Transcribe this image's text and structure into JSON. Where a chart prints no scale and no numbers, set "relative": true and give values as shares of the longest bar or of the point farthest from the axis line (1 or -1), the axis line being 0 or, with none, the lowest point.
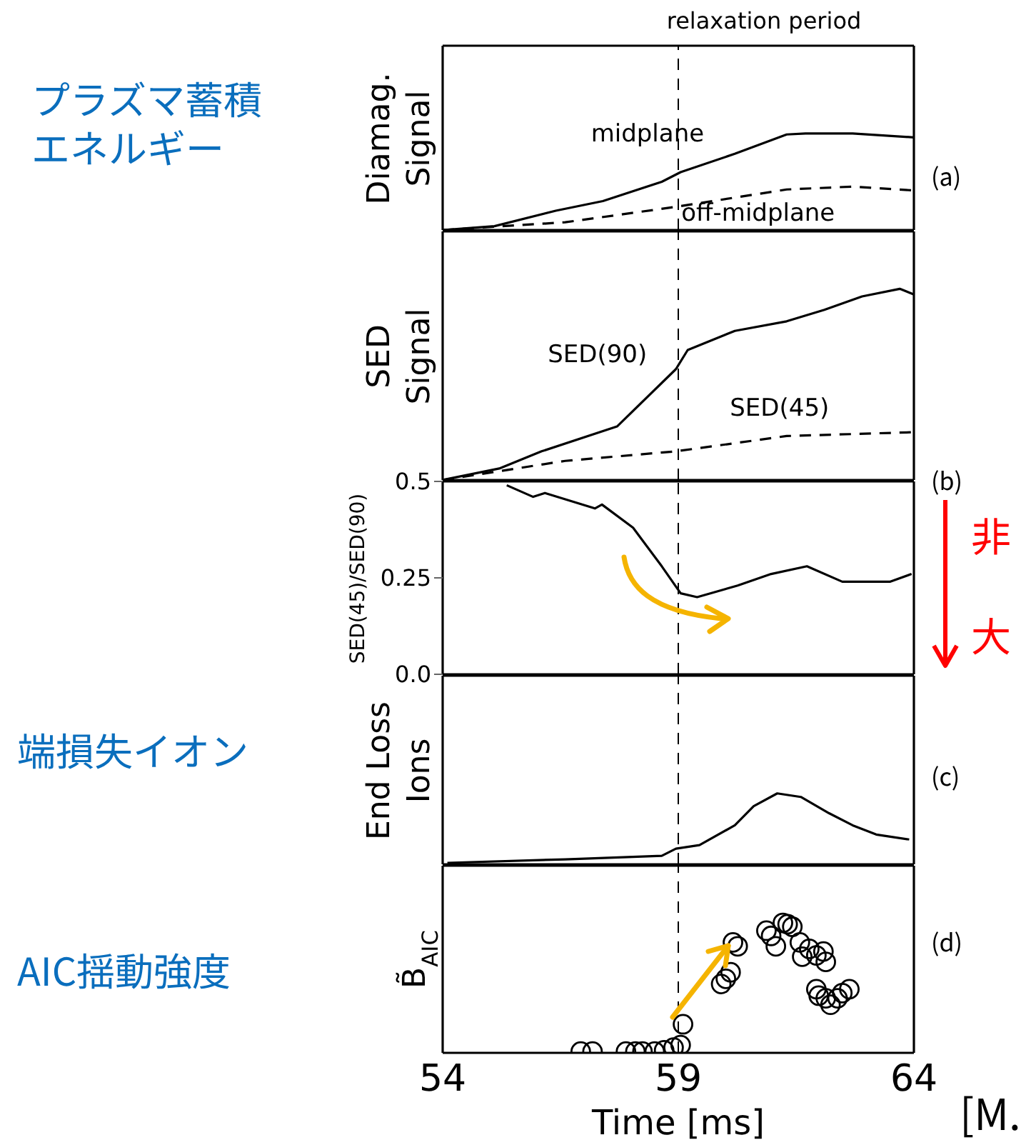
{
  "chart_data": [
    {
      "type": "line",
      "ylabel": "Diamag. Signal",
      "relative": true,
      "xlim": [
        54,
        64
      ],
      "tick_labels": false,
      "series": [
        {
          "name": "midplane",
          "color": "#000000",
          "x": [
            54,
            55.1,
            56.4,
            57.4,
            58.65,
            59.05,
            60.2,
            61.3,
            61.7,
            62.7,
            64
          ],
          "values": [
            0,
            0.04,
            0.2,
            0.3,
            0.5,
            0.6,
            0.79,
            0.99,
            1,
            1,
            0.96
          ]
        },
        {
          "name": "off-midplane",
          "color": "#000000",
          "line_style": "dashed",
          "x": [
            54,
            56.6,
            58.95,
            61.3,
            62.7,
            64
          ],
          "values": [
            0,
            0.08,
            0.24,
            0.42,
            0.45,
            0.41
          ]
        }
      ],
      "ref_lines": [
        {
          "axis": "x",
          "value": 59,
          "label": "relaxation period",
          "line_style": "dashed"
        }
      ],
      "annotations": [
        "プラズマ蓄積エネルギー",
        "(a)"
      ]
    },
    {
      "type": "line",
      "ylabel": "SED Signal",
      "relative": true,
      "xlim": [
        54,
        64
      ],
      "tick_labels": false,
      "series": [
        {
          "name": "SED(90)",
          "color": "#000000",
          "x": [
            54,
            55.2,
            56.1,
            57.7,
            58.95,
            59.2,
            60.2,
            61.3,
            62.1,
            62.9,
            63.7,
            64
          ],
          "values": [
            0,
            0.06,
            0.15,
            0.28,
            0.58,
            0.68,
            0.78,
            0.83,
            0.89,
            0.96,
            1,
            0.97
          ]
        },
        {
          "name": "SED(45)",
          "color": "#000000",
          "line_style": "dashed",
          "x": [
            54,
            56.6,
            58.95,
            61.3,
            64
          ],
          "values": [
            0,
            0.1,
            0.15,
            0.23,
            0.25
          ]
        }
      ],
      "ref_lines": [
        {
          "axis": "x",
          "value": 59,
          "label": null,
          "line_style": "dashed"
        }
      ],
      "annotations": [
        "(b)"
      ]
    },
    {
      "type": "line",
      "ylabel": "SED(45)/SED(90)",
      "xlim": [
        54,
        64
      ],
      "ylim": [
        0,
        0.5
      ],
      "yticks": [
        {
          "value": 0,
          "label": "0.0"
        },
        0.25,
        0.5
      ],
      "tick_labels": "y",
      "series": [
        {
          "color": "#000000",
          "x": [
            55.36,
            55.92,
            56.17,
            57.23,
            57.38,
            58.04,
            58.65,
            59.05,
            59.4,
            60.26,
            60.97,
            61.73,
            62.48,
            63.49,
            63.95
          ],
          "values": [
            0.49,
            0.46,
            0.47,
            0.43,
            0.44,
            0.38,
            0.28,
            0.21,
            0.2,
            0.23,
            0.26,
            0.28,
            0.24,
            0.24,
            0.26
          ]
        }
      ],
      "ref_lines": [
        {
          "axis": "x",
          "value": 59,
          "label": null,
          "line_style": "dashed"
        }
      ],
      "annotations": [
        "非",
        "大"
      ]
    },
    {
      "type": "line",
      "ylabel": "End Loss Ions",
      "relative": true,
      "xlim": [
        54,
        64
      ],
      "tick_labels": false,
      "series": [
        {
          "color": "#000000",
          "x": [
            54.1,
            56.6,
            58.65,
            58.95,
            59.45,
            60.2,
            60.6,
            61.1,
            61.6,
            62.2,
            62.7,
            63.2,
            63.9
          ],
          "values": [
            0.02,
            0.07,
            0.12,
            0.22,
            0.27,
            0.55,
            0.82,
            1,
            0.95,
            0.72,
            0.55,
            0.42,
            0.35
          ]
        }
      ],
      "ref_lines": [
        {
          "axis": "x",
          "value": 59,
          "label": null,
          "line_style": "dashed"
        }
      ],
      "annotations": [
        "端損失イオン",
        "(c)"
      ]
    },
    {
      "type": "scatter",
      "ylabel": "B̃$_{AIC}$",
      "xlabel": "Time [ms]",
      "relative": true,
      "xlim": [
        54,
        64
      ],
      "xticks": [
        54,
        59,
        64
      ],
      "tick_labels": "x",
      "marker": "circle",
      "series": [
        {
          "color": "#000000",
          "x": [
            56.93,
            57.18,
            57.89,
            58.09,
            58.24,
            58.5,
            58.7,
            58.9,
            59.05,
            59.1,
            59.91,
            60.01,
            60.11,
            60.16,
            60.26,
            60.87,
            60.97,
            61.07,
            61.22,
            61.32,
            61.42,
            61.58,
            61.63,
            61.78,
            61.93,
            62.08,
            62.13,
            61.93,
            61.98,
            62.13,
            62.23,
            62.38,
            62.48,
            62.63
          ],
          "values": [
            0.01,
            0.01,
            0.01,
            0.01,
            0.01,
            0.01,
            0.02,
            0.04,
            0.06,
            0.22,
            0.53,
            0.57,
            0.62,
            0.85,
            0.82,
            0.94,
            0.9,
            0.82,
            1,
            0.99,
            0.97,
            0.85,
            0.74,
            0.8,
            0.75,
            0.78,
            0.7,
            0.49,
            0.44,
            0.42,
            0.37,
            0.42,
            0.46,
            0.49
          ]
        }
      ],
      "ref_lines": [
        {
          "axis": "x",
          "value": 59,
          "label": null,
          "line_style": "dashed"
        }
      ],
      "annotations": [
        "AIC揺動強度",
        "(d)",
        "[M."
      ]
    }
  ]
}
